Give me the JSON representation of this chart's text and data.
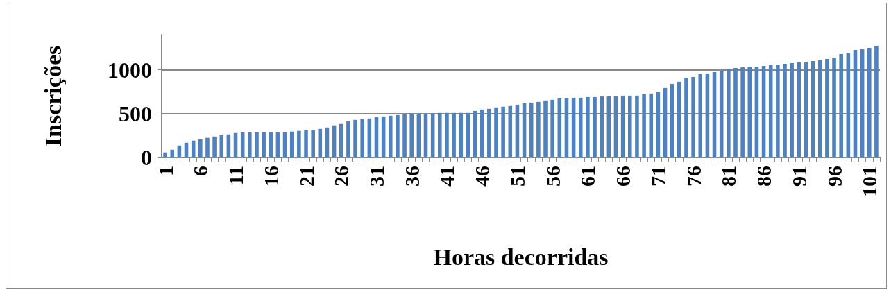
{
  "chart_data": {
    "type": "bar",
    "xlabel": "Horas decorridas",
    "ylabel": "Inscrições",
    "categories": [
      "1",
      null,
      null,
      null,
      null,
      "6",
      null,
      null,
      null,
      null,
      "11",
      null,
      null,
      null,
      null,
      "16",
      null,
      null,
      null,
      null,
      "21",
      null,
      null,
      null,
      null,
      "26",
      null,
      null,
      null,
      null,
      "31",
      null,
      null,
      null,
      null,
      "36",
      null,
      null,
      null,
      null,
      "41",
      null,
      null,
      null,
      null,
      "46",
      null,
      null,
      null,
      null,
      "51",
      null,
      null,
      null,
      null,
      "56",
      null,
      null,
      null,
      null,
      "61",
      null,
      null,
      null,
      null,
      "66",
      null,
      null,
      null,
      null,
      "71",
      null,
      null,
      null,
      null,
      "76",
      null,
      null,
      null,
      null,
      "81",
      null,
      null,
      null,
      null,
      "86",
      null,
      null,
      null,
      null,
      "91",
      null,
      null,
      null,
      null,
      "96",
      null,
      null,
      null,
      null,
      "101",
      null
    ],
    "values": [
      58,
      89,
      137,
      168,
      192,
      208,
      224,
      239,
      255,
      263,
      279,
      287,
      287,
      287,
      287,
      287,
      287,
      287,
      295,
      303,
      310,
      310,
      326,
      342,
      366,
      381,
      413,
      429,
      437,
      445,
      460,
      468,
      476,
      484,
      492,
      500,
      500,
      500,
      500,
      508,
      508,
      508,
      508,
      508,
      531,
      547,
      555,
      571,
      579,
      587,
      602,
      618,
      626,
      634,
      650,
      658,
      673,
      673,
      681,
      681,
      689,
      689,
      697,
      697,
      697,
      705,
      705,
      705,
      721,
      729,
      744,
      792,
      839,
      863,
      910,
      918,
      950,
      957,
      973,
      989,
      1013,
      1020,
      1028,
      1036,
      1036,
      1044,
      1052,
      1060,
      1068,
      1076,
      1084,
      1092,
      1099,
      1107,
      1123,
      1139,
      1178,
      1186,
      1226,
      1234,
      1249,
      1273
    ],
    "color": "#4f81bd",
    "ylim": [
      0,
      1400
    ],
    "yticks": [
      0,
      500,
      1000
    ],
    "grid": "y"
  }
}
